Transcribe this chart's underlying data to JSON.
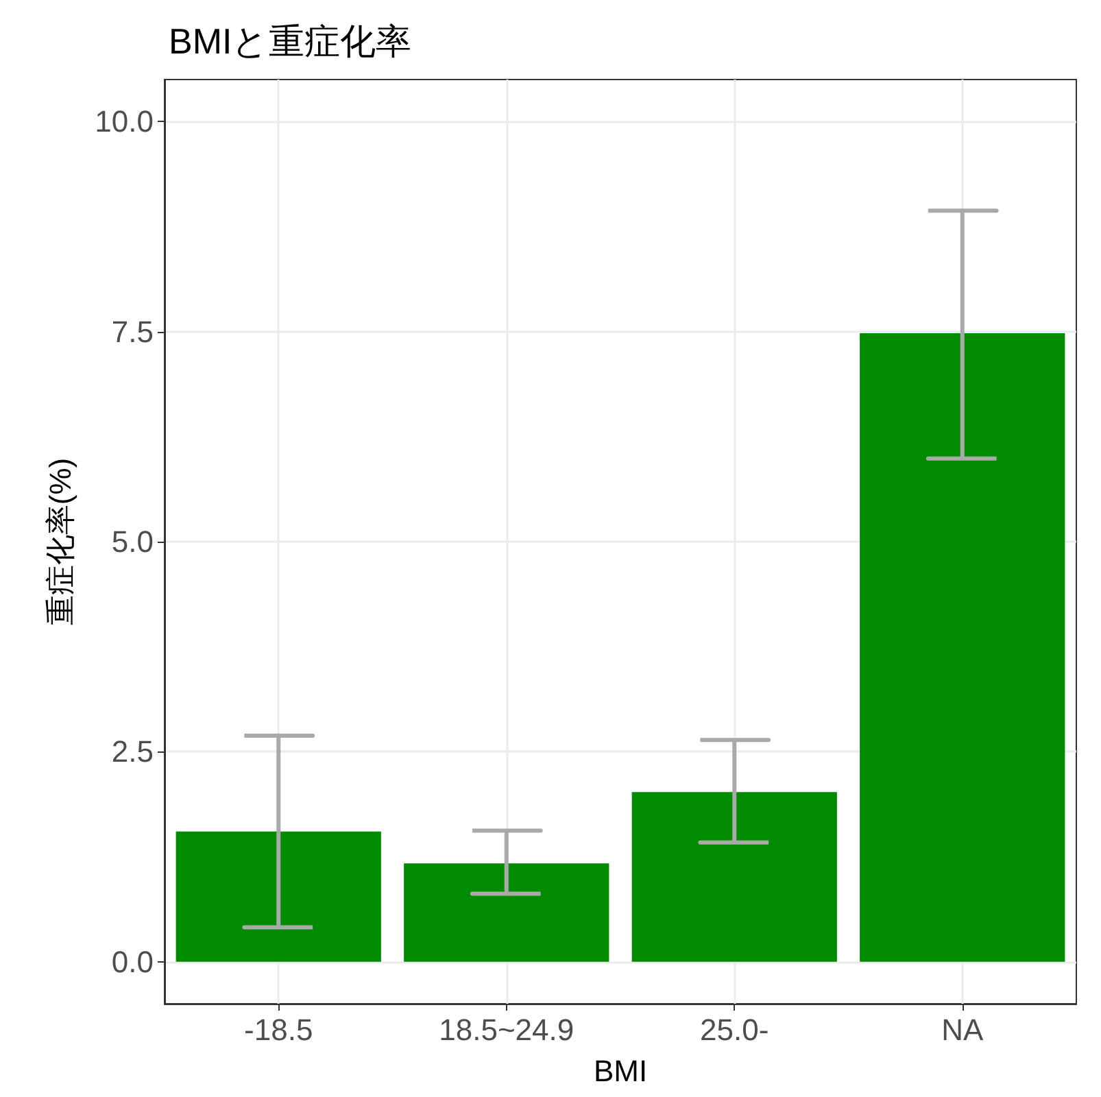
{
  "chart_data": {
    "type": "bar",
    "title": "BMIと重症化率",
    "xlabel": "BMI",
    "ylabel": "重症化率(%)",
    "categories": [
      "-18.5",
      "18.5~24.9",
      "25.0-",
      "NA"
    ],
    "values": [
      1.55,
      1.17,
      2.02,
      7.48
    ],
    "errors": [
      [
        0.41,
        2.69
      ],
      [
        0.81,
        1.56
      ],
      [
        1.42,
        2.64
      ],
      [
        5.99,
        8.94
      ]
    ],
    "color": "#008b00",
    "ylim": [
      -0.5,
      10.5
    ],
    "yticks": [
      {
        "value": 0,
        "label": "0.0"
      },
      {
        "value": 2.5,
        "label": "2.5"
      },
      {
        "value": 5,
        "label": "5.0"
      },
      {
        "value": 7.5,
        "label": "7.5"
      },
      {
        "value": 10,
        "label": "10.0"
      }
    ],
    "grid": true
  }
}
